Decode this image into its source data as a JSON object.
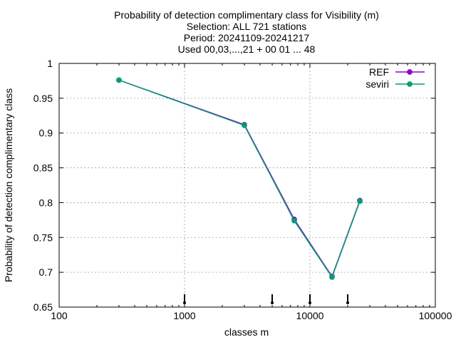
{
  "chart_data": {
    "type": "line",
    "title_lines": [
      "Probability of detection complimentary class  for Visibility (m)",
      "Selection: ALL    721 stations",
      "Period: 20241109-20241217",
      "Used 00,03,...,21 + 00 01 ... 48"
    ],
    "xlabel": "classes m",
    "ylabel": "Probability of detection complimentary class",
    "x_scale": "log",
    "xlim": [
      100,
      100000
    ],
    "ylim": [
      0.65,
      1.0
    ],
    "x_ticks": [
      100,
      1000,
      10000,
      100000
    ],
    "x_tick_labels": [
      "100",
      "1000",
      "10000",
      "100000"
    ],
    "y_ticks": [
      0.65,
      0.7,
      0.75,
      0.8,
      0.85,
      0.9,
      0.95,
      1.0
    ],
    "y_tick_labels": [
      "0.65",
      "0.7",
      "0.75",
      "0.8",
      "0.85",
      "0.9",
      "0.95",
      "1"
    ],
    "grid": true,
    "legend_position": "top-right",
    "series": [
      {
        "name": "REF",
        "color": "#9400d3",
        "x": [
          300,
          3000,
          7500,
          15000,
          25000
        ],
        "y": [
          0.976,
          0.912,
          0.776,
          0.694,
          0.803
        ]
      },
      {
        "name": "seviri",
        "color": "#009e73",
        "x": [
          300,
          3000,
          7500,
          15000,
          25000
        ],
        "y": [
          0.976,
          0.911,
          0.774,
          0.693,
          0.802
        ]
      }
    ],
    "threshold_markers": {
      "color": "#000000",
      "x": [
        1000,
        5000,
        10000,
        20000
      ]
    }
  }
}
